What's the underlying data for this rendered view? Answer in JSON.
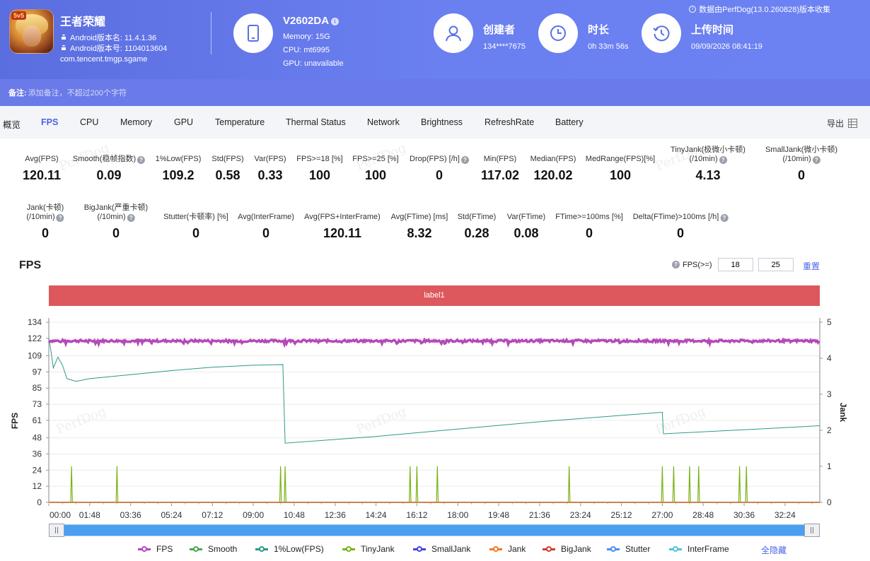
{
  "app": {
    "name": "王者荣耀",
    "version_name": "Android版本名: 11.4.1.36",
    "version_code": "Android版本号: 1104013604",
    "package": "com.tencent.tmgp.sgame",
    "icon_badge": "5v5"
  },
  "device": {
    "model": "V2602DA",
    "memory": "Memory: 15G",
    "cpu": "CPU: mt6995",
    "gpu": "GPU: unavailable"
  },
  "creator": {
    "label": "创建者",
    "value": "134****7675"
  },
  "duration": {
    "label": "时长",
    "value": "0h 33m 56s"
  },
  "upload": {
    "label": "上传时间",
    "value": "09/09/2026 08:41:19"
  },
  "source_note": "数据由PerfDog(13.0.260828)版本收集",
  "remark": {
    "label": "备注:",
    "placeholder": "添加备注，不超过200个字符"
  },
  "tabs": [
    "概览",
    "FPS",
    "CPU",
    "Memory",
    "GPU",
    "Temperature",
    "Thermal Status",
    "Network",
    "Brightness",
    "RefreshRate",
    "Battery"
  ],
  "active_tab": "FPS",
  "export_label": "导出",
  "metrics_row1": [
    {
      "label": "Avg(FPS)",
      "value": "120.11",
      "help": false
    },
    {
      "label": "Smooth(稳帧指数)",
      "value": "0.09",
      "help": true
    },
    {
      "label": "1%Low(FPS)",
      "value": "109.2",
      "help": false
    },
    {
      "label": "Std(FPS)",
      "value": "0.58",
      "help": false
    },
    {
      "label": "Var(FPS)",
      "value": "0.33",
      "help": false
    },
    {
      "label": "FPS>=18 [%]",
      "value": "100",
      "help": false
    },
    {
      "label": "FPS>=25 [%]",
      "value": "100",
      "help": false
    },
    {
      "label": "Drop(FPS) [/h]",
      "value": "0",
      "help": true
    },
    {
      "label": "Min(FPS)",
      "value": "117.02",
      "help": false
    },
    {
      "label": "Median(FPS)",
      "value": "120.02",
      "help": false
    },
    {
      "label": "MedRange(FPS)[%]",
      "value": "100",
      "help": false
    },
    {
      "label": "TinyJank(极微小卡顿)",
      "label2": "(/10min)",
      "value": "4.13",
      "help": true
    },
    {
      "label": "SmallJank(微小卡顿)",
      "label2": "(/10min)",
      "value": "0",
      "help": true
    }
  ],
  "metrics_row2": [
    {
      "label": "Jank(卡顿)",
      "label2": "(/10min)",
      "value": "0",
      "help": true
    },
    {
      "label": "BigJank(严重卡顿)",
      "label2": "(/10min)",
      "value": "0",
      "help": true
    },
    {
      "label": "Stutter(卡顿率) [%]",
      "value": "0",
      "help": false
    },
    {
      "label": "Avg(InterFrame)",
      "value": "0",
      "help": false
    },
    {
      "label": "Avg(FPS+InterFrame)",
      "value": "120.11",
      "help": false
    },
    {
      "label": "Avg(FTime) [ms]",
      "value": "8.32",
      "help": false
    },
    {
      "label": "Std(FTime)",
      "value": "0.28",
      "help": false
    },
    {
      "label": "Var(FTime)",
      "value": "0.08",
      "help": false
    },
    {
      "label": "FTime>=100ms [%]",
      "value": "0",
      "help": false
    },
    {
      "label": "Delta(FTime)>100ms [/h]",
      "value": "0",
      "help": true
    }
  ],
  "watermark": "PerfDog",
  "section_title": "FPS",
  "fps_threshold": {
    "label": "FPS(>=)",
    "value1": "18",
    "value2": "25"
  },
  "reset_label": "重置",
  "label_band": "label1",
  "hide_all_label": "全隐藏",
  "colors": {
    "FPS": "#b548b8",
    "Smooth": "#4aa84a",
    "1%Low(FPS)": "#2a9a8a",
    "TinyJank": "#7ab317",
    "SmallJank": "#4242e8",
    "Jank": "#f07a24",
    "BigJank": "#d43a2e",
    "Stutter": "#4a8ff0",
    "InterFrame": "#4ec4dc"
  },
  "chart_data": {
    "type": "line",
    "title": "FPS",
    "ylabel": "FPS",
    "y2label": "Jank",
    "yticks": [
      0,
      12,
      24,
      36,
      48,
      61,
      73,
      85,
      97,
      109,
      122,
      134
    ],
    "ylim": [
      0,
      134
    ],
    "y2ticks": [
      0,
      1,
      2,
      3,
      4,
      5
    ],
    "y2lim": [
      0,
      5
    ],
    "xticks": [
      "00:00",
      "01:48",
      "03:36",
      "05:24",
      "07:12",
      "09:00",
      "10:48",
      "12:36",
      "14:24",
      "16:12",
      "18:00",
      "19:48",
      "21:36",
      "23:24",
      "25:12",
      "27:00",
      "28:48",
      "30:36",
      "32:24"
    ],
    "x_end_minutes": 33.93,
    "legend_position": "bottom",
    "series": [
      {
        "name": "FPS",
        "axis": "left",
        "points": [
          [
            0,
            120.1
          ],
          [
            33.93,
            120.1
          ]
        ],
        "jitter": true
      },
      {
        "name": "1%Low(FPS)",
        "axis": "left",
        "points": [
          [
            0,
            122
          ],
          [
            0.1,
            112
          ],
          [
            0.2,
            100
          ],
          [
            0.4,
            108
          ],
          [
            0.6,
            102
          ],
          [
            0.8,
            92
          ],
          [
            1.2,
            90
          ],
          [
            1.8,
            92
          ],
          [
            3.6,
            95
          ],
          [
            5.4,
            98
          ],
          [
            7.2,
            100.5
          ],
          [
            9.0,
            102
          ],
          [
            10.3,
            102.5
          ],
          [
            10.4,
            44
          ],
          [
            14.4,
            49
          ],
          [
            21.6,
            60
          ],
          [
            27.0,
            67
          ],
          [
            27.05,
            51
          ],
          [
            30.6,
            54
          ],
          [
            33.93,
            57
          ]
        ]
      },
      {
        "name": "TinyJank",
        "axis": "right",
        "points": [
          [
            1.0,
            1
          ],
          [
            3.0,
            1
          ],
          [
            10.2,
            1
          ],
          [
            10.4,
            1
          ],
          [
            15.9,
            1
          ],
          [
            16.2,
            1
          ],
          [
            17.1,
            1
          ],
          [
            22.9,
            1
          ],
          [
            27.0,
            1
          ],
          [
            27.5,
            1
          ],
          [
            28.2,
            1
          ],
          [
            28.6,
            1
          ],
          [
            30.4,
            1
          ],
          [
            30.7,
            1
          ]
        ]
      },
      {
        "name": "Smooth",
        "axis": "right",
        "points": [
          [
            0,
            0
          ],
          [
            33.93,
            0
          ]
        ]
      },
      {
        "name": "SmallJank",
        "axis": "right",
        "points": [
          [
            0,
            0
          ],
          [
            33.93,
            0
          ]
        ]
      },
      {
        "name": "Jank",
        "axis": "right",
        "points": [
          [
            0,
            0
          ],
          [
            33.93,
            0
          ]
        ]
      },
      {
        "name": "BigJank",
        "axis": "right",
        "points": [
          [
            0,
            0
          ],
          [
            33.93,
            0
          ]
        ]
      },
      {
        "name": "Stutter",
        "axis": "right",
        "points": [
          [
            0,
            0
          ],
          [
            33.93,
            0
          ]
        ]
      },
      {
        "name": "InterFrame",
        "axis": "right",
        "points": [
          [
            0,
            0
          ],
          [
            33.93,
            0
          ]
        ]
      }
    ]
  }
}
